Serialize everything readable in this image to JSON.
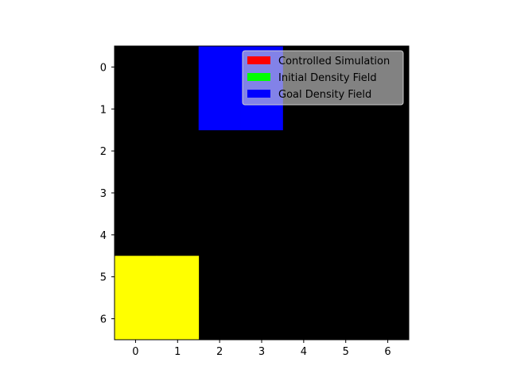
{
  "chart_data": {
    "type": "heatmap",
    "title": "",
    "xlabel": "",
    "ylabel": "",
    "x_ticks": [
      0,
      1,
      2,
      3,
      4,
      5,
      6
    ],
    "y_ticks": [
      0,
      1,
      2,
      3,
      4,
      5,
      6
    ],
    "xlim": [
      -0.5,
      6.5
    ],
    "ylim": [
      6.5,
      -0.5
    ],
    "grid": false,
    "background_color": "#000000",
    "cells": [
      {
        "x": 0,
        "y": 5,
        "color": "#ffff00"
      },
      {
        "x": 1,
        "y": 5,
        "color": "#ffff00"
      },
      {
        "x": 0,
        "y": 6,
        "color": "#ffff00"
      },
      {
        "x": 1,
        "y": 6,
        "color": "#ffff00"
      },
      {
        "x": 2,
        "y": 0,
        "color": "#0000ff"
      },
      {
        "x": 3,
        "y": 0,
        "color": "#0000ff"
      },
      {
        "x": 2,
        "y": 1,
        "color": "#0000ff"
      },
      {
        "x": 3,
        "y": 1,
        "color": "#0000ff"
      }
    ],
    "legend": {
      "placement": "top-right",
      "entries": [
        {
          "label": "Controlled Simulation",
          "color": "#ff0000"
        },
        {
          "label": "Initial Density Field",
          "color": "#00ff00"
        },
        {
          "label": "Goal Density Field",
          "color": "#0000ff"
        }
      ]
    }
  }
}
